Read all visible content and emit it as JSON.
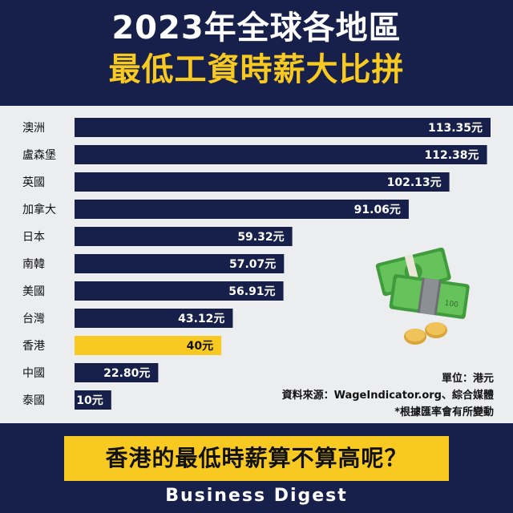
{
  "header": {
    "title_line1": "2023年全球各地區",
    "title_line2": "最低工資時薪大比拼"
  },
  "chart_data": {
    "type": "bar",
    "orientation": "horizontal",
    "title": "2023年全球各地區最低工資時薪大比拼",
    "categories": [
      "澳洲",
      "盧森堡",
      "英國",
      "加拿大",
      "日本",
      "南韓",
      "美國",
      "台灣",
      "香港",
      "中國",
      "泰國"
    ],
    "values": [
      113.35,
      112.38,
      102.13,
      91.06,
      59.32,
      57.07,
      56.91,
      43.12,
      40,
      22.8,
      10
    ],
    "value_labels": [
      "113.35元",
      "112.38元",
      "102.13元",
      "91.06元",
      "59.32元",
      "57.07元",
      "56.91元",
      "43.12元",
      "40元",
      "22.80元",
      "10元"
    ],
    "highlight_category": "香港",
    "colors": {
      "bar": "#16204a",
      "highlight": "#f8c921",
      "label_light": "#ffffff",
      "label_dark": "#111111"
    },
    "grid": false
  },
  "notes": {
    "unit": "單位：港元",
    "source": "資料來源：WageIndicator.org、綜合媒體",
    "disclaimer": "*根據匯率會有所變動"
  },
  "illustration": {
    "icon": "cash-and-coins-icon"
  },
  "footer": {
    "question": "香港的最低時薪算不算高呢？",
    "brand": "Business Digest"
  }
}
